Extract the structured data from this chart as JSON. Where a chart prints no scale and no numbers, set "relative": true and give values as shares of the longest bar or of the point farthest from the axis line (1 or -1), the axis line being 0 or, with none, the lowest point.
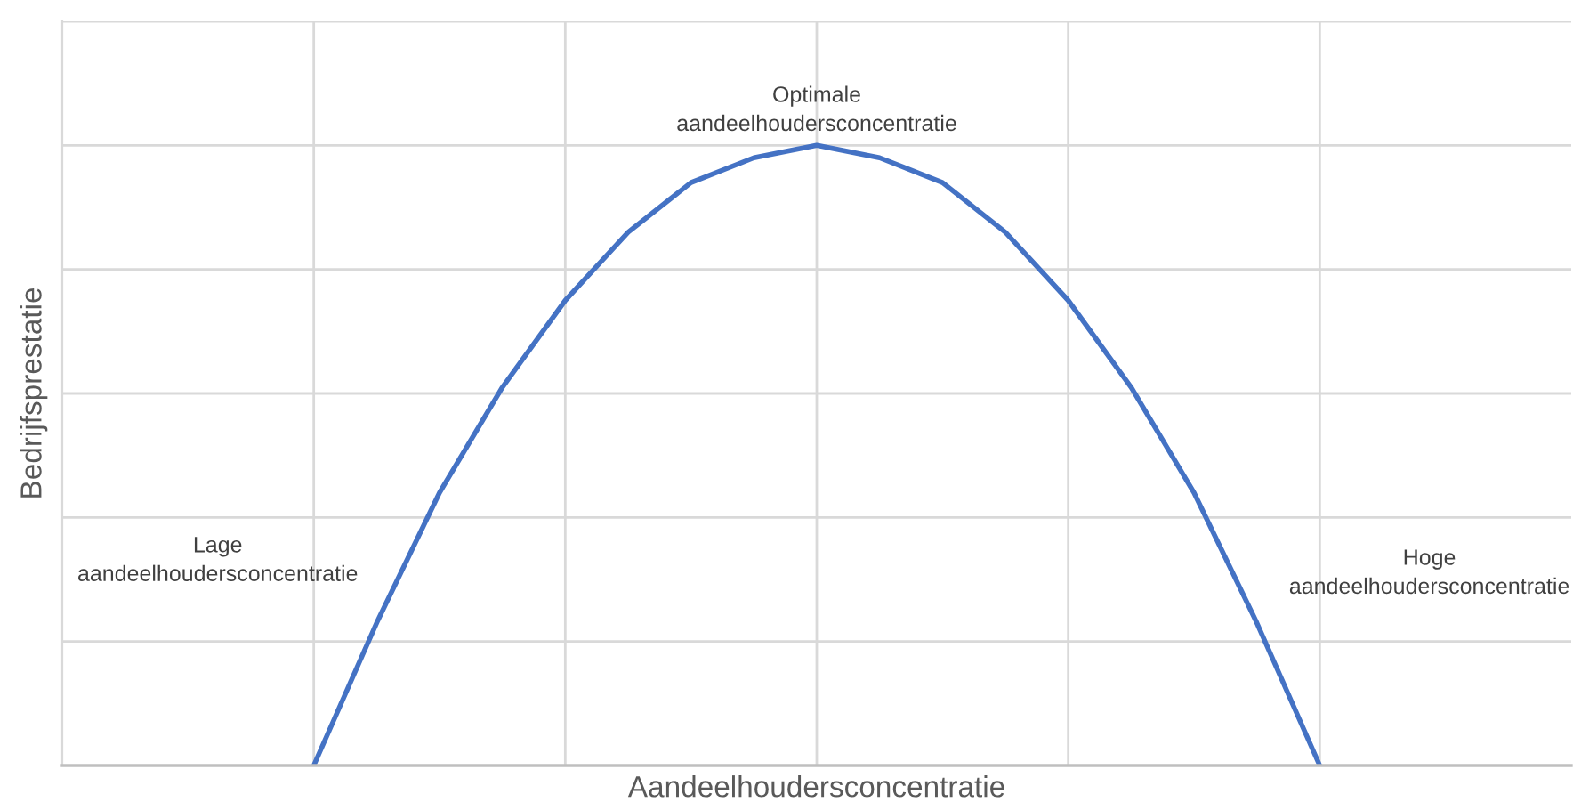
{
  "chart_data": {
    "type": "line",
    "relative": true,
    "xlabel": "Aandeelhoudersconcentratie",
    "ylabel": "Bedrijfsprestatie",
    "categories": [
      null,
      null,
      null,
      null,
      null,
      null,
      null,
      null,
      null,
      null,
      null,
      null,
      null,
      null,
      null,
      null,
      null,
      null,
      null,
      null,
      null,
      null,
      null,
      null,
      null
    ],
    "series": [
      {
        "color": "#4472c4",
        "values": [
          null,
          null,
          null,
          null,
          0,
          0.23,
          0.44,
          0.61,
          0.75,
          0.86,
          0.94,
          0.98,
          1,
          0.98,
          0.94,
          0.86,
          0.75,
          0.61,
          0.44,
          0.23,
          0,
          null,
          null,
          null,
          null
        ]
      }
    ],
    "annotations": [
      "Optimale\naandeelhoudersconcentratie",
      "Lage\naandeelhoudersconcentratie",
      "Hoge\naandeelhoudersconcentratie"
    ],
    "grid": true,
    "legend": false,
    "marker": "none",
    "line_style": "solid"
  }
}
